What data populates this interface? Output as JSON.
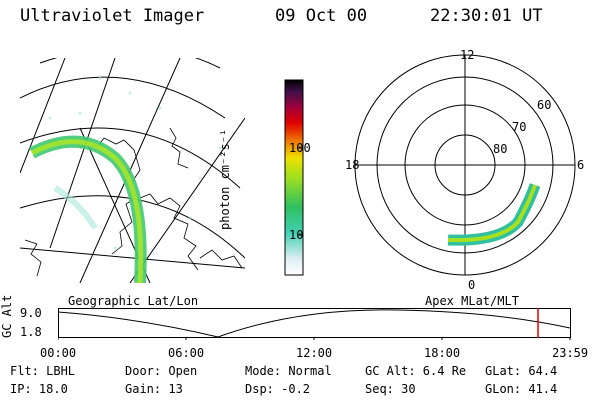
{
  "header": {
    "instrument": "Ultraviolet Imager",
    "date": "09 Oct 00",
    "time": "22:30:01 UT"
  },
  "colorbar": {
    "unit_label": "photon cm⁻²s⁻¹",
    "ticks": [
      "100",
      "10"
    ]
  },
  "polar": {
    "hour_labels": {
      "top": "12",
      "left": "18",
      "right": "6",
      "bottom": "0"
    },
    "lat_labels": [
      "60",
      "70",
      "80"
    ]
  },
  "timeline": {
    "left_label": "Geographic Lat/Lon",
    "right_label": "Apex MLat/MLT",
    "y_label": "GC Alt",
    "y_max": "9.0",
    "y_min": "1.8",
    "time_ticks": [
      "00:00",
      "06:00",
      "12:00",
      "18:00",
      "23:59"
    ],
    "marker_color": "#e00000"
  },
  "info": {
    "row1": {
      "filter": "Flt: LBHL",
      "door": "Door: Open",
      "mode": "Mode: Normal",
      "gc_alt": "GC Alt: 6.4 Re",
      "glat": "GLat:  64.4"
    },
    "row2": {
      "ip": "IP: 18.0",
      "gain": "Gain: 13",
      "dsp": "Dsp:   -0.2",
      "seq": "Seq: 30",
      "glon": "GLon:  41.4"
    }
  }
}
